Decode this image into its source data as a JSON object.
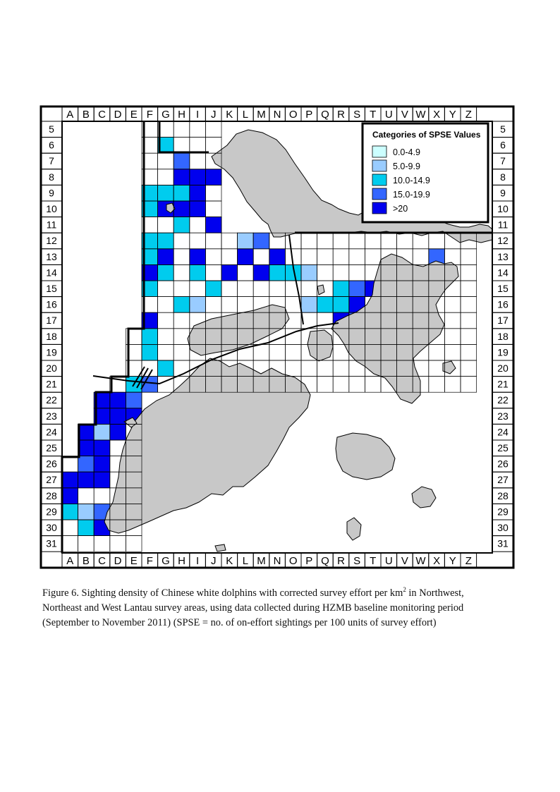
{
  "map": {
    "columns": [
      "A",
      "B",
      "C",
      "D",
      "E",
      "F",
      "G",
      "H",
      "I",
      "J",
      "K",
      "L",
      "M",
      "N",
      "O",
      "P",
      "Q",
      "R",
      "S",
      "T",
      "U",
      "V",
      "W",
      "X",
      "Y",
      "Z"
    ],
    "rows": [
      "5",
      "6",
      "7",
      "8",
      "9",
      "10",
      "11",
      "12",
      "13",
      "14",
      "15",
      "16",
      "17",
      "18",
      "19",
      "20",
      "21",
      "22",
      "23",
      "24",
      "25",
      "26",
      "27",
      "28",
      "29",
      "30",
      "31"
    ],
    "legend": {
      "title": "Categories of SPSE Values",
      "categories": [
        {
          "label": "0.0-4.9",
          "color": "#ccffff"
        },
        {
          "label": "5.0-9.9",
          "color": "#99ccff"
        },
        {
          "label": "10.0-14.9",
          "color": "#00ccee"
        },
        {
          "label": ">20",
          "color": "#0000ee"
        }
      ],
      "category_15": {
        "label": "15.0-19.9",
        "color": "#3366ff"
      }
    },
    "land_color": "#c8c8c8",
    "cells": [
      {
        "col": "G",
        "row": "6",
        "cat": 2
      },
      {
        "col": "H",
        "row": "7",
        "cat": 3
      },
      {
        "col": "H",
        "row": "8",
        "cat": 4
      },
      {
        "col": "I",
        "row": "8",
        "cat": 4
      },
      {
        "col": "J",
        "row": "8",
        "cat": 4
      },
      {
        "col": "F",
        "row": "9",
        "cat": 2
      },
      {
        "col": "G",
        "row": "9",
        "cat": 2
      },
      {
        "col": "H",
        "row": "9",
        "cat": 2
      },
      {
        "col": "I",
        "row": "9",
        "cat": 4
      },
      {
        "col": "F",
        "row": "10",
        "cat": 2
      },
      {
        "col": "G",
        "row": "10",
        "cat": 4
      },
      {
        "col": "H",
        "row": "10",
        "cat": 4
      },
      {
        "col": "I",
        "row": "10",
        "cat": 4
      },
      {
        "col": "H",
        "row": "11",
        "cat": 2
      },
      {
        "col": "J",
        "row": "11",
        "cat": 4
      },
      {
        "col": "F",
        "row": "12",
        "cat": 2
      },
      {
        "col": "G",
        "row": "12",
        "cat": 2
      },
      {
        "col": "L",
        "row": "12",
        "cat": 1
      },
      {
        "col": "M",
        "row": "12",
        "cat": 3
      },
      {
        "col": "F",
        "row": "13",
        "cat": 2
      },
      {
        "col": "G",
        "row": "13",
        "cat": 4
      },
      {
        "col": "I",
        "row": "13",
        "cat": 4
      },
      {
        "col": "L",
        "row": "13",
        "cat": 4
      },
      {
        "col": "N",
        "row": "13",
        "cat": 4
      },
      {
        "col": "X",
        "row": "13",
        "cat": 3
      },
      {
        "col": "F",
        "row": "14",
        "cat": 4
      },
      {
        "col": "G",
        "row": "14",
        "cat": 2
      },
      {
        "col": "I",
        "row": "14",
        "cat": 2
      },
      {
        "col": "K",
        "row": "14",
        "cat": 4
      },
      {
        "col": "M",
        "row": "14",
        "cat": 4
      },
      {
        "col": "N",
        "row": "14",
        "cat": 2
      },
      {
        "col": "O",
        "row": "14",
        "cat": 2
      },
      {
        "col": "P",
        "row": "14",
        "cat": 1
      },
      {
        "col": "F",
        "row": "15",
        "cat": 2
      },
      {
        "col": "J",
        "row": "15",
        "cat": 2
      },
      {
        "col": "R",
        "row": "15",
        "cat": 2
      },
      {
        "col": "S",
        "row": "15",
        "cat": 3
      },
      {
        "col": "T",
        "row": "15",
        "cat": 4
      },
      {
        "col": "H",
        "row": "16",
        "cat": 2
      },
      {
        "col": "I",
        "row": "16",
        "cat": 1
      },
      {
        "col": "P",
        "row": "16",
        "cat": 1
      },
      {
        "col": "Q",
        "row": "16",
        "cat": 2
      },
      {
        "col": "R",
        "row": "16",
        "cat": 2
      },
      {
        "col": "S",
        "row": "16",
        "cat": 4
      },
      {
        "col": "F",
        "row": "17",
        "cat": 4
      },
      {
        "col": "R",
        "row": "17",
        "cat": 4
      },
      {
        "col": "S",
        "row": "17",
        "cat": 3
      },
      {
        "col": "F",
        "row": "18",
        "cat": 2
      },
      {
        "col": "F",
        "row": "19",
        "cat": 2
      },
      {
        "col": "G",
        "row": "20",
        "cat": 2
      },
      {
        "col": "E",
        "row": "21",
        "cat": 2
      },
      {
        "col": "F",
        "row": "21",
        "cat": 3
      },
      {
        "col": "C",
        "row": "22",
        "cat": 4
      },
      {
        "col": "D",
        "row": "22",
        "cat": 4
      },
      {
        "col": "E",
        "row": "22",
        "cat": 3
      },
      {
        "col": "C",
        "row": "23",
        "cat": 4
      },
      {
        "col": "D",
        "row": "23",
        "cat": 4
      },
      {
        "col": "E",
        "row": "23",
        "cat": 4
      },
      {
        "col": "B",
        "row": "24",
        "cat": 4
      },
      {
        "col": "C",
        "row": "24",
        "cat": 1
      },
      {
        "col": "D",
        "row": "24",
        "cat": 4
      },
      {
        "col": "B",
        "row": "25",
        "cat": 4
      },
      {
        "col": "C",
        "row": "25",
        "cat": 4
      },
      {
        "col": "B",
        "row": "26",
        "cat": 3
      },
      {
        "col": "C",
        "row": "26",
        "cat": 4
      },
      {
        "col": "A",
        "row": "27",
        "cat": 4
      },
      {
        "col": "B",
        "row": "27",
        "cat": 4
      },
      {
        "col": "C",
        "row": "27",
        "cat": 4
      },
      {
        "col": "A",
        "row": "28",
        "cat": 4
      },
      {
        "col": "A",
        "row": "29",
        "cat": 2
      },
      {
        "col": "B",
        "row": "29",
        "cat": 1
      },
      {
        "col": "C",
        "row": "29",
        "cat": 3
      },
      {
        "col": "B",
        "row": "30",
        "cat": 2
      },
      {
        "col": "C",
        "row": "30",
        "cat": 4
      }
    ]
  },
  "caption": {
    "line1_pre": "Figure 6.  Sighting density of Chinese white dolphins with corrected survey effort per km",
    "line1_sup": "2",
    "line1_post": " in Northwest,",
    "line2": "Northeast and West Lantau survey areas, using data collected during HZMB baseline monitoring period",
    "line3": "(September to November 2011) (SPSE = no. of on-effort sightings per 100 units of survey effort)"
  }
}
